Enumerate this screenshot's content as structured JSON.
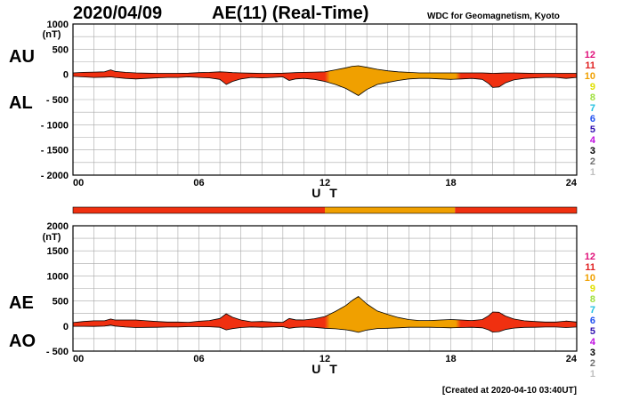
{
  "header": {
    "date": "2020/04/09",
    "title": "AE(11) (Real-Time)",
    "org": "WDC for Geomagnetism, Kyoto"
  },
  "footer": {
    "created": "[Created at 2020-04-10 03:40UT]"
  },
  "level_legend": {
    "labels": [
      "12",
      "11",
      "10",
      "9",
      "8",
      "7",
      "6",
      "5",
      "4",
      "3",
      "2",
      "1"
    ],
    "colors": [
      "#e0107a",
      "#e02020",
      "#f0a000",
      "#e0e000",
      "#a0e040",
      "#20c0e0",
      "#2050f0",
      "#3010b0",
      "#c010e0",
      "#000000",
      "#707070",
      "#c0c0c0"
    ]
  },
  "chart_data": [
    {
      "type": "area",
      "name": "AU-AL panel",
      "side_labels": [
        "AU",
        "AL"
      ],
      "unit": "(nT)",
      "xlabel": "U T",
      "xlim": [
        0,
        24
      ],
      "ylim": [
        -2000,
        1000
      ],
      "xticks": [
        "00",
        "06",
        "12",
        "18",
        "24"
      ],
      "yticks": [
        "1000",
        "500",
        "0",
        "- 500",
        "- 1000",
        "- 1500",
        "- 2000"
      ],
      "grid": true,
      "fill_colors": {
        "low": "#f03010",
        "high": "#f0a000"
      },
      "x": [
        0,
        0.5,
        1,
        1.5,
        1.8,
        2,
        2.5,
        3,
        3.5,
        4,
        4.5,
        5,
        5.5,
        6,
        6.5,
        7,
        7.3,
        7.6,
        8,
        8.5,
        9,
        9.5,
        10,
        10.3,
        10.6,
        11,
        11.5,
        12,
        12.5,
        13,
        13.3,
        13.6,
        14,
        14.5,
        15,
        15.5,
        16,
        16.5,
        17,
        17.5,
        18,
        18.5,
        19,
        19.5,
        19.8,
        20,
        20.3,
        20.6,
        21,
        21.5,
        22,
        22.5,
        23,
        23.5,
        24
      ],
      "upper": [
        30,
        40,
        45,
        50,
        90,
        60,
        40,
        30,
        25,
        20,
        20,
        20,
        25,
        35,
        40,
        50,
        45,
        35,
        30,
        25,
        20,
        20,
        25,
        30,
        35,
        40,
        45,
        50,
        90,
        130,
        160,
        170,
        140,
        100,
        70,
        50,
        40,
        30,
        30,
        30,
        30,
        30,
        30,
        30,
        25,
        20,
        25,
        30,
        30,
        25,
        20,
        20,
        20,
        20,
        20
      ],
      "lower": [
        -40,
        -50,
        -60,
        -55,
        -50,
        -60,
        -80,
        -90,
        -80,
        -70,
        -60,
        -60,
        -50,
        -60,
        -70,
        -100,
        -200,
        -140,
        -90,
        -60,
        -70,
        -60,
        -50,
        -120,
        -90,
        -80,
        -100,
        -140,
        -200,
        -280,
        -350,
        -420,
        -300,
        -200,
        -160,
        -120,
        -90,
        -80,
        -80,
        -90,
        -100,
        -90,
        -80,
        -100,
        -180,
        -260,
        -250,
        -170,
        -110,
        -80,
        -70,
        -60,
        -60,
        -80,
        -60
      ]
    },
    {
      "type": "area",
      "name": "AE-AO panel",
      "side_labels": [
        "AE",
        "AO"
      ],
      "unit": "(nT)",
      "xlabel": "U T",
      "xlim": [
        0,
        24
      ],
      "ylim": [
        -500,
        2000
      ],
      "xticks": [
        "00",
        "06",
        "12",
        "18",
        "24"
      ],
      "yticks": [
        "2000",
        "1500",
        "1000",
        "500",
        "0",
        "- 500"
      ],
      "grid": true,
      "fill_colors": {
        "low": "#f03010",
        "high": "#f0a000"
      },
      "x": [
        0,
        0.5,
        1,
        1.5,
        1.8,
        2,
        2.5,
        3,
        3.5,
        4,
        4.5,
        5,
        5.5,
        6,
        6.5,
        7,
        7.3,
        7.6,
        8,
        8.5,
        9,
        9.5,
        10,
        10.3,
        10.6,
        11,
        11.5,
        12,
        12.5,
        13,
        13.3,
        13.6,
        14,
        14.5,
        15,
        15.5,
        16,
        16.5,
        17,
        17.5,
        18,
        18.5,
        19,
        19.5,
        19.8,
        20,
        20.3,
        20.6,
        21,
        21.5,
        22,
        22.5,
        23,
        23.5,
        24
      ],
      "upper": [
        70,
        90,
        105,
        105,
        140,
        120,
        120,
        120,
        105,
        90,
        80,
        80,
        75,
        95,
        110,
        150,
        245,
        175,
        120,
        85,
        90,
        80,
        75,
        150,
        125,
        120,
        145,
        190,
        290,
        410,
        510,
        590,
        440,
        300,
        230,
        170,
        130,
        110,
        110,
        120,
        130,
        120,
        110,
        130,
        205,
        280,
        275,
        200,
        140,
        105,
        90,
        80,
        80,
        100,
        80
      ],
      "lower": [
        -5,
        -5,
        -7,
        -2,
        20,
        0,
        -20,
        -30,
        -27,
        -25,
        -20,
        -20,
        -12,
        -12,
        -15,
        -25,
        -77,
        -52,
        -30,
        -17,
        -25,
        -20,
        -12,
        -45,
        -27,
        -20,
        -27,
        -45,
        -55,
        -75,
        -95,
        -125,
        -80,
        -50,
        -45,
        -35,
        -25,
        -25,
        -25,
        -30,
        -35,
        -30,
        -25,
        -35,
        -77,
        -120,
        -112,
        -70,
        -40,
        -27,
        -25,
        -20,
        -20,
        -30,
        -20
      ]
    }
  ],
  "activity_bar": {
    "xlim": [
      0,
      24
    ],
    "segments": [
      {
        "start": 0,
        "end": 12,
        "color": "#f03010"
      },
      {
        "start": 12,
        "end": 18.2,
        "color": "#f0a000"
      },
      {
        "start": 18.2,
        "end": 24,
        "color": "#f03010"
      }
    ]
  }
}
